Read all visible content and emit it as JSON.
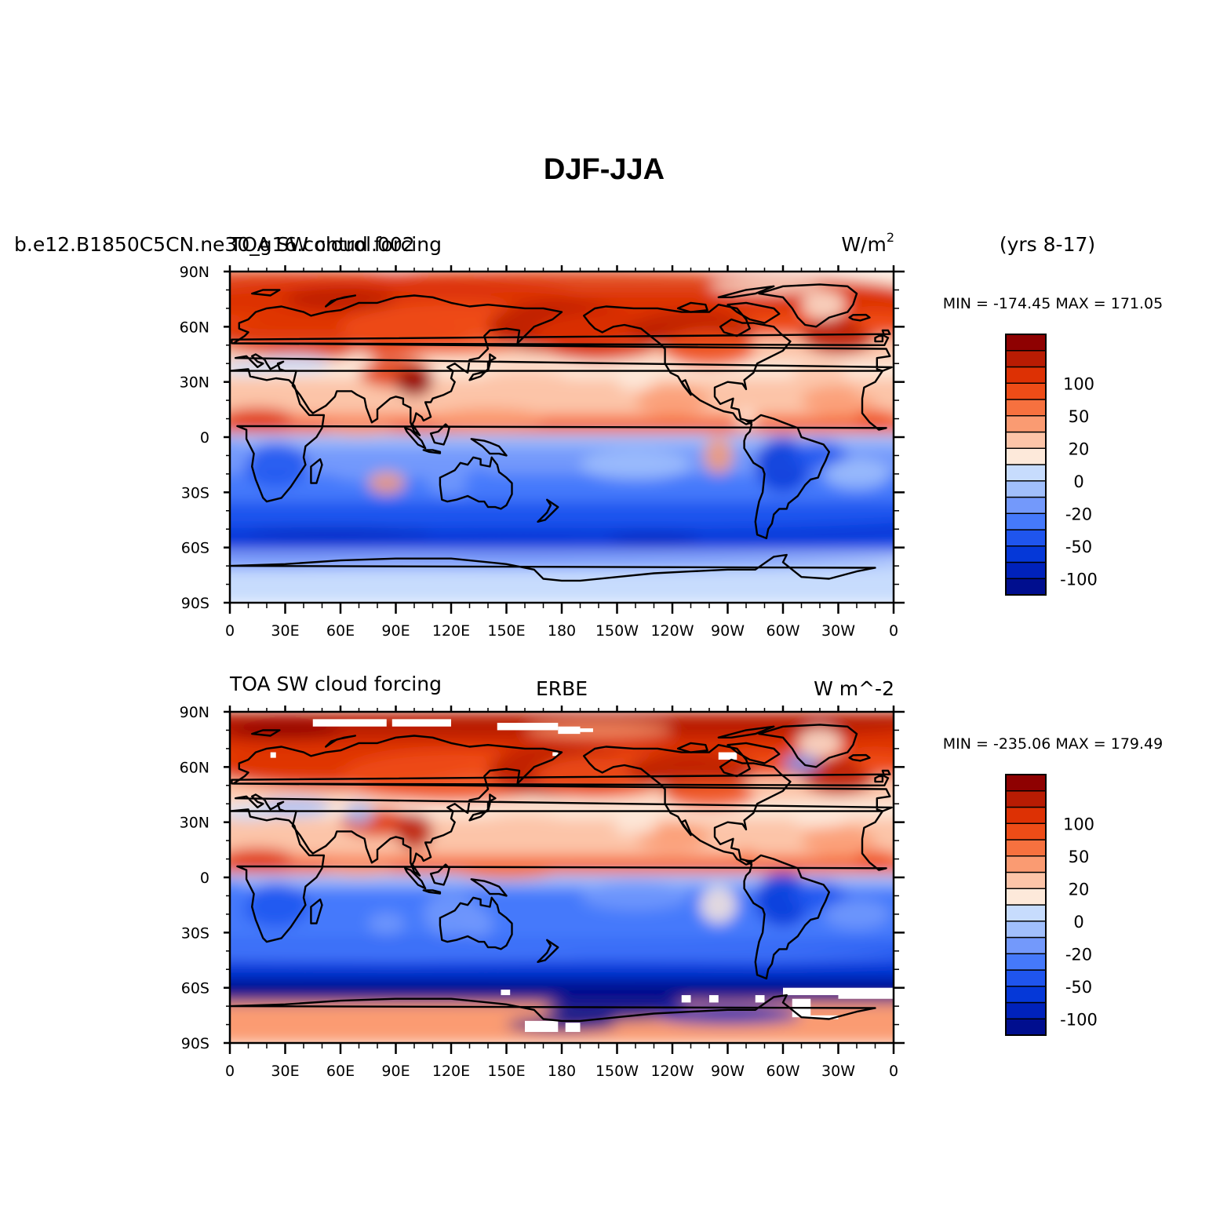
{
  "title": "DJF-JJA",
  "colors": {
    "scale": [
      "#000e8e",
      "#0022bb",
      "#0538d8",
      "#1f55ee",
      "#4579fb",
      "#7399fb",
      "#a1bffc",
      "#c7dcfd",
      "#fde9da",
      "#fcc4a8",
      "#fa9b72",
      "#f6713f",
      "#ee4c17",
      "#dd3104",
      "#b81c03",
      "#8e0101"
    ],
    "missing": "#ffffff",
    "coast": "#000000"
  },
  "panels": [
    {
      "left_title": "b.e12.B1850C5CN.ne30_g16.control.002",
      "left_title_overlap": "TOA SW cloud forcing",
      "center_title": "",
      "units": "W/m",
      "units_sup": "2",
      "right_title": "(yrs 8-17)",
      "minmax": "MIN = -174.45  MAX = 171.05",
      "has_missing": false
    },
    {
      "left_title": "TOA SW cloud forcing",
      "left_title_overlap": "",
      "center_title": "ERBE",
      "units": "W m^-2",
      "units_sup": "",
      "right_title": "",
      "minmax": "MIN = -235.06  MAX = 179.49",
      "has_missing": true
    }
  ],
  "lat_ticks": [
    "90N",
    "60N",
    "30N",
    "0",
    "30S",
    "60S",
    "90S"
  ],
  "lon_ticks": [
    "0",
    "30E",
    "60E",
    "90E",
    "120E",
    "150E",
    "180",
    "150W",
    "120W",
    "90W",
    "60W",
    "30W",
    "0"
  ],
  "colorbar_labels": [
    "100",
    "50",
    "20",
    "0",
    "-20",
    "-50",
    "-100"
  ]
}
